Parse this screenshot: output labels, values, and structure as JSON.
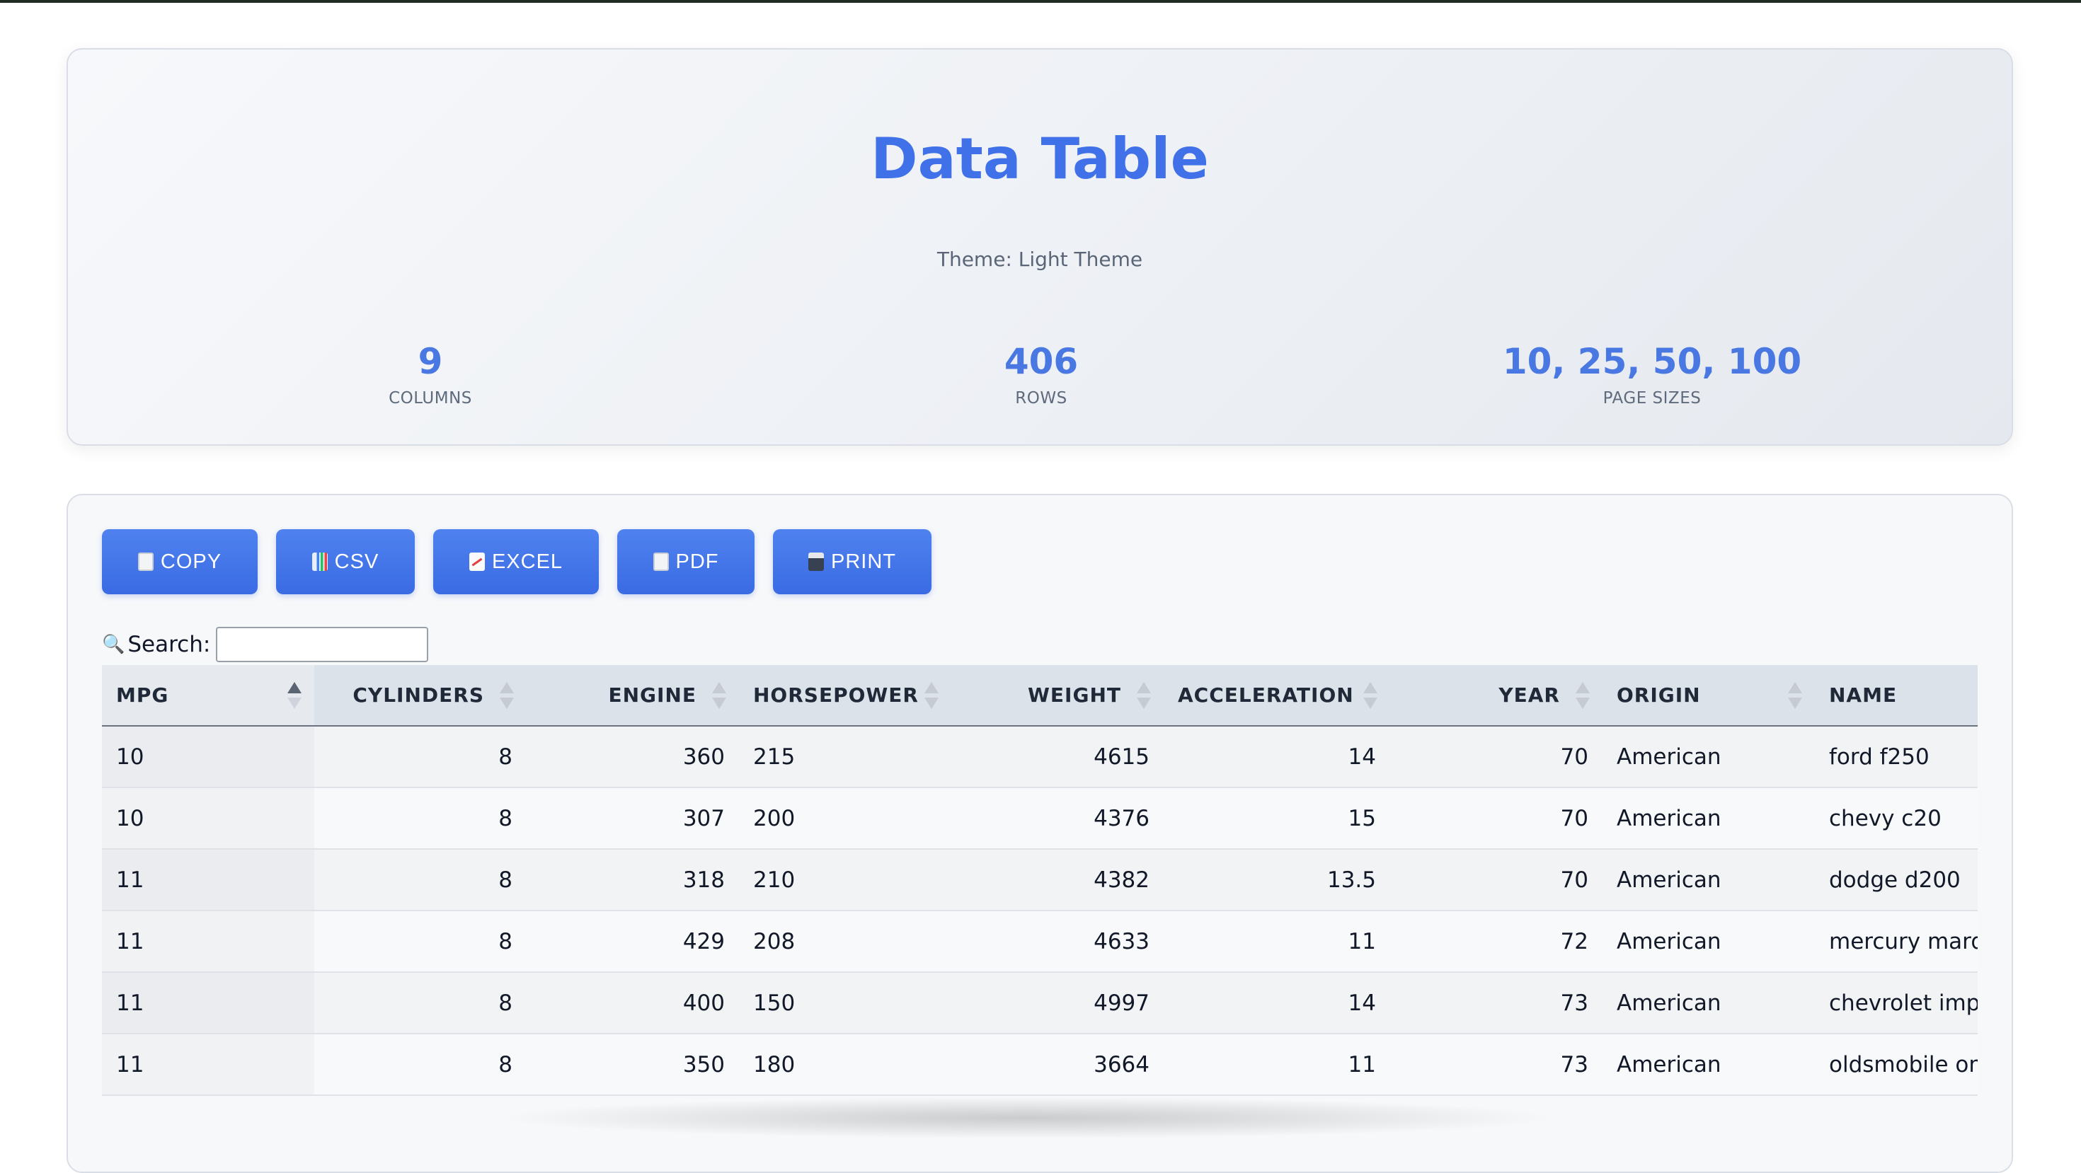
{
  "header": {
    "title": "Data Table",
    "theme_line": "Theme: Light Theme",
    "stats": [
      {
        "value": "9",
        "label": "COLUMNS"
      },
      {
        "value": "406",
        "label": "ROWS"
      },
      {
        "value": "10, 25, 50, 100",
        "label": "PAGE SIZES"
      }
    ]
  },
  "toolbar": {
    "copy": "COPY",
    "csv": "CSV",
    "excel": "EXCEL",
    "pdf": "PDF",
    "print": "PRINT"
  },
  "search": {
    "label": "Search:",
    "value": "",
    "placeholder": ""
  },
  "table": {
    "columns": [
      "MPG",
      "CYLINDERS",
      "ENGINE",
      "HORSEPOWER",
      "WEIGHT",
      "ACCELERATION",
      "YEAR",
      "ORIGIN",
      "NAME"
    ],
    "sorted_column": "MPG",
    "sort_direction": "ascending",
    "rows": [
      [
        "10",
        "8",
        "360",
        "215",
        "4615",
        "14",
        "70",
        "American",
        "ford f250"
      ],
      [
        "10",
        "8",
        "307",
        "200",
        "4376",
        "15",
        "70",
        "American",
        "chevy c20"
      ],
      [
        "11",
        "8",
        "318",
        "210",
        "4382",
        "13.5",
        "70",
        "American",
        "dodge d200"
      ],
      [
        "11",
        "8",
        "429",
        "208",
        "4633",
        "11",
        "72",
        "American",
        "mercury marquis"
      ],
      [
        "11",
        "8",
        "400",
        "150",
        "4997",
        "14",
        "73",
        "American",
        "chevrolet impala"
      ],
      [
        "11",
        "8",
        "350",
        "180",
        "3664",
        "11",
        "73",
        "American",
        "oldsmobile omega"
      ]
    ]
  },
  "colors": {
    "accent": "#4071e8",
    "button": "#3a6be4"
  }
}
